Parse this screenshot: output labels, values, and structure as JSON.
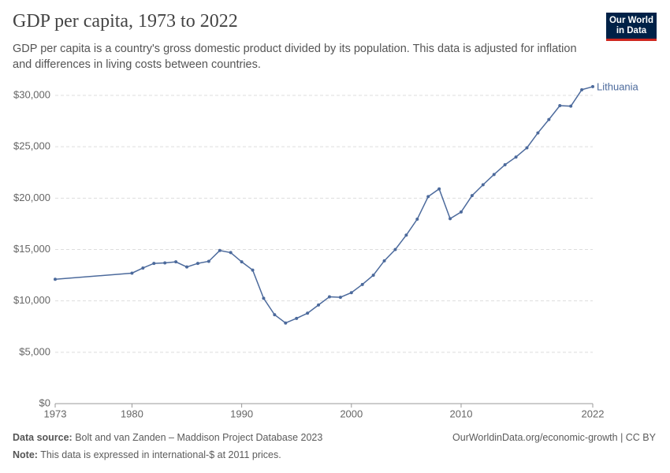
{
  "chart_data": {
    "type": "line",
    "title": "GDP per capita, 1973 to 2022",
    "subtitle": "GDP per capita is a country's gross domestic product divided by its population. This data is adjusted for inflation and differences in living costs between countries.",
    "x": [
      1973,
      1980,
      1981,
      1982,
      1983,
      1984,
      1985,
      1986,
      1987,
      1988,
      1989,
      1990,
      1991,
      1992,
      1993,
      1994,
      1995,
      1996,
      1997,
      1998,
      1999,
      2000,
      2001,
      2002,
      2003,
      2004,
      2005,
      2006,
      2007,
      2008,
      2009,
      2010,
      2011,
      2012,
      2013,
      2014,
      2015,
      2016,
      2017,
      2018,
      2019,
      2020,
      2021,
      2022
    ],
    "series": [
      {
        "name": "Lithuania",
        "color": "#4c6a9c",
        "values": [
          12100,
          12700,
          13200,
          13650,
          13700,
          13800,
          13300,
          13650,
          13850,
          14900,
          14700,
          13800,
          13000,
          10250,
          8650,
          7850,
          8300,
          8800,
          9600,
          10400,
          10350,
          10800,
          11600,
          12500,
          13900,
          15000,
          16400,
          17950,
          20150,
          20900,
          18000,
          18650,
          20250,
          21300,
          22300,
          23250,
          24000,
          24900,
          26350,
          27650,
          29000,
          28950,
          30550,
          30850
        ]
      }
    ],
    "xlim": [
      1973,
      2022
    ],
    "xticks": [
      1973,
      1980,
      1990,
      2000,
      2010,
      2022
    ],
    "ylim": [
      0,
      30000
    ],
    "yticks": [
      {
        "value": 0,
        "label": "$0"
      },
      {
        "value": 5000,
        "label": "$5,000"
      },
      {
        "value": 10000,
        "label": "$10,000"
      },
      {
        "value": 15000,
        "label": "$15,000"
      },
      {
        "value": 20000,
        "label": "$20,000"
      },
      {
        "value": 25000,
        "label": "$25,000"
      },
      {
        "value": 30000,
        "label": "$30,000"
      }
    ],
    "grid": true
  },
  "logo": [
    "Our World",
    "in Data"
  ],
  "footer": {
    "source_label": "Data source:",
    "source": "Bolt and van Zanden – Maddison Project Database 2023",
    "url": "OurWorldinData.org/economic-growth | CC BY",
    "note_label": "Note:",
    "note": "This data is expressed in international-$ at 2011 prices."
  }
}
